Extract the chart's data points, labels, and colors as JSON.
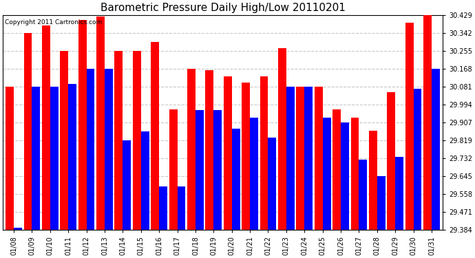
{
  "title": "Barometric Pressure Daily High/Low 20110201",
  "copyright_text": "Copyright 2011 Cartronics.com",
  "dates": [
    "01/08",
    "01/09",
    "01/10",
    "01/11",
    "01/12",
    "01/13",
    "01/14",
    "01/15",
    "01/16",
    "01/17",
    "01/18",
    "01/19",
    "01/20",
    "01/21",
    "01/22",
    "01/23",
    "01/24",
    "01/25",
    "01/26",
    "01/27",
    "01/28",
    "01/29",
    "01/30",
    "01/31"
  ],
  "highs": [
    30.081,
    30.342,
    30.377,
    30.255,
    30.406,
    30.42,
    30.255,
    30.255,
    30.298,
    29.971,
    30.168,
    30.16,
    30.13,
    30.1,
    30.13,
    30.268,
    30.081,
    30.081,
    29.971,
    29.93,
    29.865,
    30.052,
    30.39,
    30.429
  ],
  "lows": [
    29.393,
    30.081,
    30.081,
    30.094,
    30.168,
    30.168,
    29.819,
    29.862,
    29.594,
    29.594,
    29.965,
    29.965,
    29.875,
    29.93,
    29.832,
    30.081,
    30.081,
    29.93,
    29.907,
    29.725,
    29.645,
    29.739,
    30.071,
    30.168
  ],
  "high_color": "#FF0000",
  "low_color": "#0000FF",
  "background_color": "#FFFFFF",
  "grid_color": "#C8C8C8",
  "ymin": 29.384,
  "ymax": 30.429,
  "yticks": [
    29.384,
    29.471,
    29.558,
    29.645,
    29.732,
    29.819,
    29.907,
    29.994,
    30.081,
    30.168,
    30.255,
    30.342,
    30.429
  ],
  "title_fontsize": 11,
  "tick_fontsize": 7,
  "copyright_fontsize": 6.5
}
